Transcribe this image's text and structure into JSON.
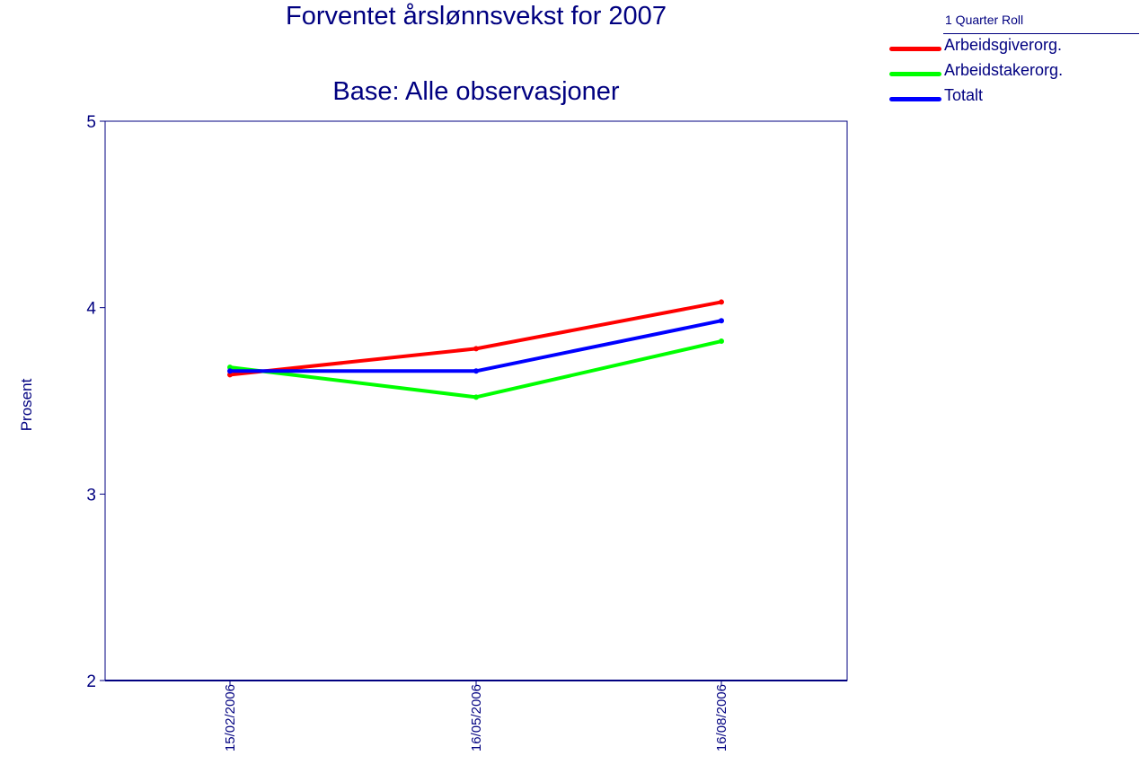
{
  "chart_data": {
    "type": "line",
    "title": "Forventet årslønnsvekst for 2007",
    "subtitle": "Base: Alle observasjoner",
    "ylabel": "Prosent",
    "xlabel": "",
    "ylim": [
      2,
      5
    ],
    "yticks": [
      "2",
      "3",
      "4",
      "5"
    ],
    "x": [
      "15/02/2006",
      "16/05/2006",
      "16/08/2006"
    ],
    "grid": false,
    "legend": {
      "title": "1 Quarter Roll",
      "placement": "top-right"
    },
    "series": [
      {
        "name": "Arbeidsgiverorg.",
        "color": "#ff0000",
        "values": [
          3.64,
          3.78,
          4.03
        ]
      },
      {
        "name": "Arbeidstakerorg.",
        "color": "#00ff00",
        "values": [
          3.68,
          3.52,
          3.82
        ]
      },
      {
        "name": "Totalt",
        "color": "#0000ff",
        "values": [
          3.66,
          3.66,
          3.93
        ]
      }
    ]
  }
}
